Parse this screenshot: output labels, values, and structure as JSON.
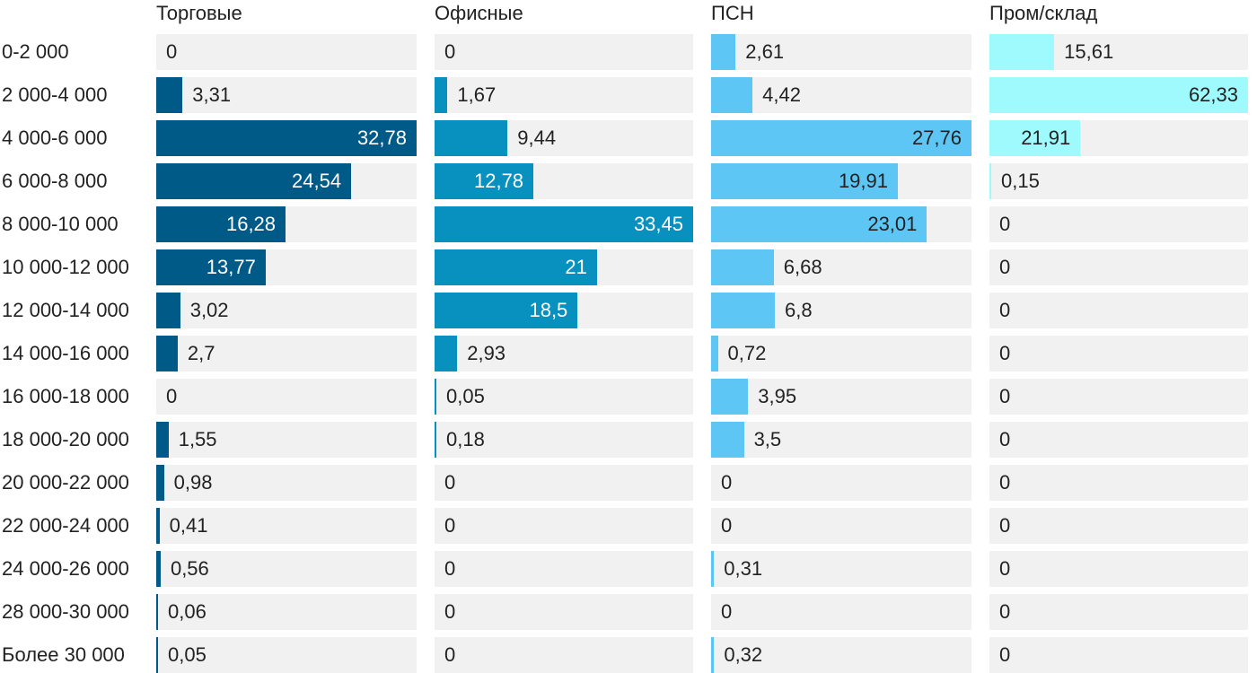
{
  "chart_data": {
    "type": "bar",
    "categories": [
      "0-2 000",
      "2 000-4 000",
      "4 000-6 000",
      "6 000-8 000",
      "8 000-10 000",
      "10 000-12 000",
      "12 000-14 000",
      "14 000-16 000",
      "16 000-18 000",
      "18 000-20 000",
      "20 000-22 000",
      "22 000-24 000",
      "24 000-26 000",
      "28 000-30 000",
      "Более 30 000"
    ],
    "series": [
      {
        "name": "Торговые",
        "color": "#005a87",
        "values": [
          0,
          3.31,
          32.78,
          24.54,
          16.28,
          13.77,
          3.02,
          2.7,
          0,
          1.55,
          0.98,
          0.41,
          0.56,
          0.06,
          0.05
        ],
        "labels": [
          "0",
          "3,31",
          "32,78",
          "24,54",
          "16,28",
          "13,77",
          "3,02",
          "2,7",
          "0",
          "1,55",
          "0,98",
          "0,41",
          "0,56",
          "0,06",
          "0,05"
        ],
        "max": 32.78
      },
      {
        "name": "Офисные",
        "color": "#0891bf",
        "values": [
          0,
          1.67,
          9.44,
          12.78,
          33.45,
          21,
          18.5,
          2.93,
          0.05,
          0.18,
          0,
          0,
          0,
          0,
          0
        ],
        "labels": [
          "0",
          "1,67",
          "9,44",
          "12,78",
          "33,45",
          "21",
          "18,5",
          "2,93",
          "0,05",
          "0,18",
          "0",
          "0",
          "0",
          "0",
          "0"
        ],
        "max": 33.45
      },
      {
        "name": "ПСН",
        "color": "#5ec6f5",
        "values": [
          2.61,
          4.42,
          27.76,
          19.91,
          23.01,
          6.68,
          6.8,
          0.72,
          3.95,
          3.5,
          0,
          0,
          0.31,
          0,
          0.32
        ],
        "labels": [
          "2,61",
          "4,42",
          "27,76",
          "19,91",
          "23,01",
          "6,68",
          "6,8",
          "0,72",
          "3,95",
          "3,5",
          "0",
          "0",
          "0,31",
          "0",
          "0,32"
        ],
        "max": 27.76
      },
      {
        "name": "Пром/склад",
        "color": "#9ffafd",
        "values": [
          15.61,
          62.33,
          21.91,
          0.15,
          0,
          0,
          0,
          0,
          0,
          0,
          0,
          0,
          0,
          0,
          0
        ],
        "labels": [
          "15,61",
          "62,33",
          "21,91",
          "0,15",
          "0",
          "0",
          "0",
          "0",
          "0",
          "0",
          "0",
          "0",
          "0",
          "0",
          "0"
        ],
        "max": 62.33
      }
    ],
    "title": "",
    "xlabel": "",
    "ylabel": "",
    "grid": false,
    "legend": "none"
  }
}
